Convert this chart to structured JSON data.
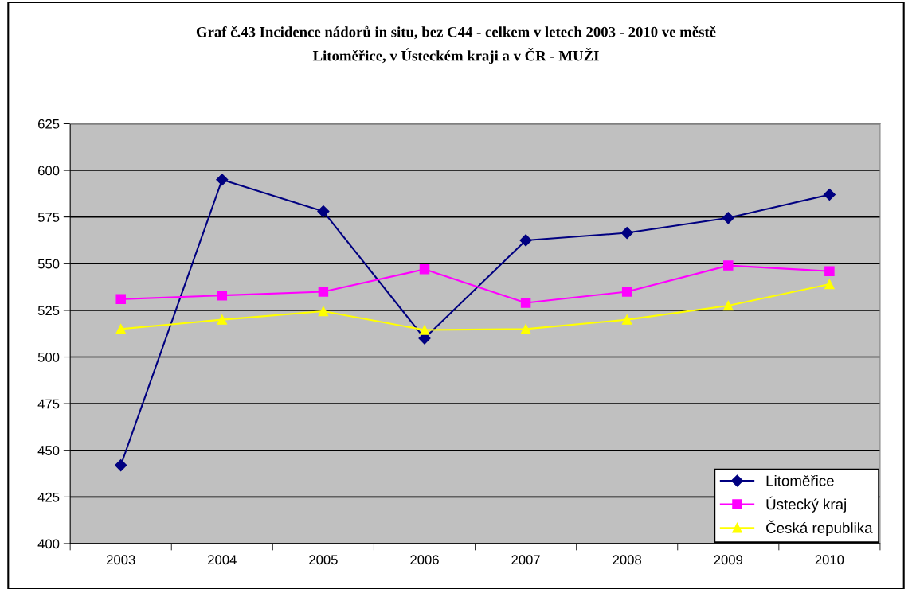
{
  "chart_data": {
    "type": "line",
    "title": "Graf č.43 Incidence nádorů in situ, bez C44 - celkem v letech 2003 - 2010 ve městě\nLitoměřice, v Ústeckém kraji a v ČR - MUŽI",
    "categories": [
      "2003",
      "2004",
      "2005",
      "2006",
      "2007",
      "2008",
      "2009",
      "2010"
    ],
    "series": [
      {
        "name": "Litoměřice",
        "color": "#000080",
        "marker": "diamond",
        "values": [
          442,
          595,
          578,
          510,
          562.5,
          566.5,
          574.5,
          587
        ]
      },
      {
        "name": "Ústecký kraj",
        "color": "#ff00ff",
        "marker": "square",
        "values": [
          531,
          533,
          535,
          547,
          529,
          535,
          549,
          546
        ]
      },
      {
        "name": "Česká republika",
        "color": "#ffff00",
        "marker": "triangle",
        "values": [
          515,
          520,
          524.5,
          514.5,
          515,
          520,
          527.5,
          539
        ]
      }
    ],
    "ylim": [
      400,
      625
    ],
    "yticks": [
      400,
      425,
      450,
      475,
      500,
      525,
      550,
      575,
      600,
      625
    ],
    "grid": "y",
    "legend": "bottom right",
    "line_style": "solid"
  }
}
